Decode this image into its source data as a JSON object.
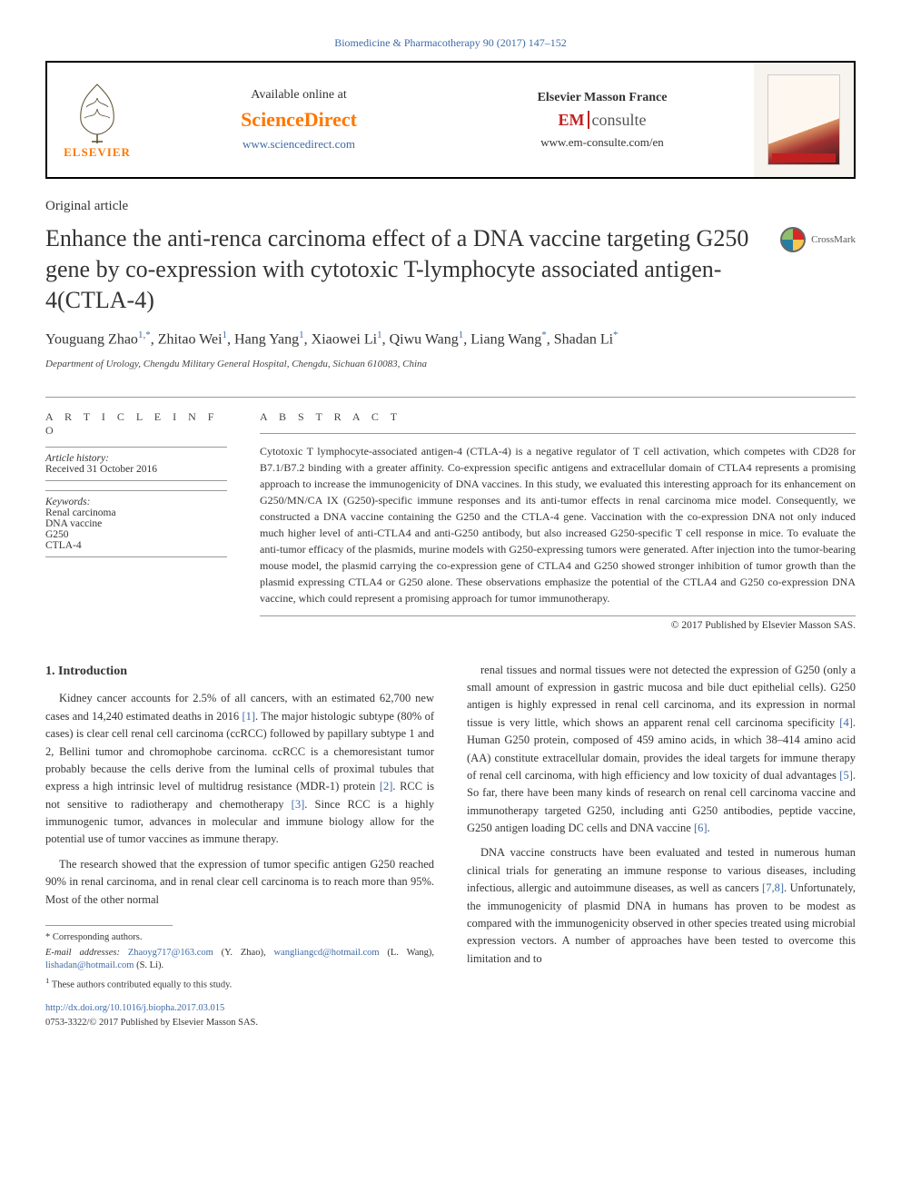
{
  "journal_citation": "Biomedicine & Pharmacotherapy 90 (2017) 147–152",
  "header": {
    "elsevier_label": "ELSEVIER",
    "sd_avail": "Available online at",
    "sd_logo": "ScienceDirect",
    "sd_link": "www.sciencedirect.com",
    "em_label": "Elsevier Masson France",
    "em_logo_left": "EM",
    "em_logo_right": "consulte",
    "em_link": "www.em-consulte.com/en"
  },
  "article_type": "Original article",
  "title": "Enhance the anti-renca carcinoma effect of a DNA vaccine targeting G250 gene by co-expression with cytotoxic T-lymphocyte associated antigen-4(CTLA-4)",
  "crossmark": "CrossMark",
  "authors_html_parts": [
    {
      "name": "Youguang Zhao",
      "sup": "1,*"
    },
    {
      "name": "Zhitao Wei",
      "sup": "1"
    },
    {
      "name": "Hang Yang",
      "sup": "1"
    },
    {
      "name": "Xiaowei Li",
      "sup": "1"
    },
    {
      "name": "Qiwu Wang",
      "sup": "1"
    },
    {
      "name": "Liang Wang",
      "sup": "*"
    },
    {
      "name": "Shadan Li",
      "sup": "*"
    }
  ],
  "affiliation": "Department of Urology, Chengdu Military General Hospital, Chengdu, Sichuan 610083, China",
  "info": {
    "head": "A R T I C L E   I N F O",
    "history_label": "Article history:",
    "history_received": "Received 31 October 2016",
    "keywords_label": "Keywords:",
    "keywords": [
      "Renal carcinoma",
      "DNA vaccine",
      "G250",
      "CTLA-4"
    ]
  },
  "abstract": {
    "head": "A B S T R A C T",
    "text": "Cytotoxic T lymphocyte-associated antigen-4 (CTLA-4) is a negative regulator of T cell activation, which competes with CD28 for B7.1/B7.2 binding with a greater affinity. Co-expression specific antigens and extracellular domain of CTLA4 represents a promising approach to increase the immunogenicity of DNA vaccines. In this study, we evaluated this interesting approach for its enhancement on G250/MN/CA IX (G250)-specific immune responses and its anti-tumor effects in renal carcinoma mice model. Consequently, we constructed a DNA vaccine containing the G250 and the CTLA-4 gene. Vaccination with the co-expression DNA not only induced much higher level of anti-CTLA4 and anti-G250 antibody, but also increased G250-specific T cell response in mice. To evaluate the anti-tumor efficacy of the plasmids, murine models with G250-expressing tumors were generated. After injection into the tumor-bearing mouse model, the plasmid carrying the co-expression gene of CTLA4 and G250 showed stronger inhibition of tumor growth than the plasmid expressing CTLA4 or G250 alone. These observations emphasize the potential of the CTLA4 and G250 co-expression DNA vaccine, which could represent a promising approach for tumor immunotherapy.",
    "copyright": "© 2017 Published by Elsevier Masson SAS."
  },
  "body": {
    "section_title": "1. Introduction",
    "left_p1": "Kidney cancer accounts for 2.5% of all cancers, with an estimated 62,700 new cases and 14,240 estimated deaths in 2016 [1]. The major histologic subtype (80% of cases) is clear cell renal cell carcinoma (ccRCC) followed by papillary subtype 1 and 2, Bellini tumor and chromophobe carcinoma. ccRCC is a chemoresistant tumor probably because the cells derive from the luminal cells of proximal tubules that express a high intrinsic level of multidrug resistance (MDR-1) protein [2]. RCC is not sensitive to radiotherapy and chemotherapy [3]. Since RCC is a highly immunogenic tumor, advances in molecular and immune biology allow for the potential use of tumor vaccines as immune therapy.",
    "left_p2": "The research showed that the expression of tumor specific antigen G250 reached 90% in renal carcinoma, and in renal clear cell carcinoma is to reach more than 95%. Most of the other normal",
    "right_p1": "renal tissues and normal tissues were not detected the expression of G250 (only a small amount of expression in gastric mucosa and bile duct epithelial cells). G250 antigen is highly expressed in renal cell carcinoma, and its expression in normal tissue is very little, which shows an apparent renal cell carcinoma specificity [4]. Human G250 protein, composed of 459 amino acids, in which 38–414 amino acid (AA) constitute extracellular domain, provides the ideal targets for immune therapy of renal cell carcinoma, with high efficiency and low toxicity of dual advantages [5]. So far, there have been many kinds of research on renal cell carcinoma vaccine and immunotherapy targeted G250, including anti G250 antibodies, peptide vaccine, G250 antigen loading DC cells and DNA vaccine [6].",
    "right_p2": "DNA vaccine constructs have been evaluated and tested in numerous human clinical trials for generating an immune response to various diseases, including infectious, allergic and autoimmune diseases, as well as cancers [7,8]. Unfortunately, the immunogenicity of plasmid DNA in humans has proven to be modest as compared with the immunogenicity observed in other species treated using microbial expression vectors. A number of approaches have been tested to overcome this limitation and to"
  },
  "footnotes": {
    "corr_label": "* Corresponding authors.",
    "email_label": "E-mail addresses:",
    "emails": [
      {
        "addr": "Zhaoyg717@163.com",
        "who": "(Y. Zhao)"
      },
      {
        "addr": "wangliangcd@hotmail.com",
        "who": "(L. Wang)"
      },
      {
        "addr": "lishadan@hotmail.com",
        "who": "(S. Li)."
      }
    ],
    "equal": "1 These authors contributed equally to this study."
  },
  "issn": {
    "doi": "http://dx.doi.org/10.1016/j.biopha.2017.03.015",
    "line": "0753-3322/© 2017 Published by Elsevier Masson SAS."
  },
  "citations": {
    "c1": "[1]",
    "c2": "[2]",
    "c3": "[3]",
    "c4": "[4]",
    "c5": "[5]",
    "c6": "[6]",
    "c78": "[7,8]"
  }
}
